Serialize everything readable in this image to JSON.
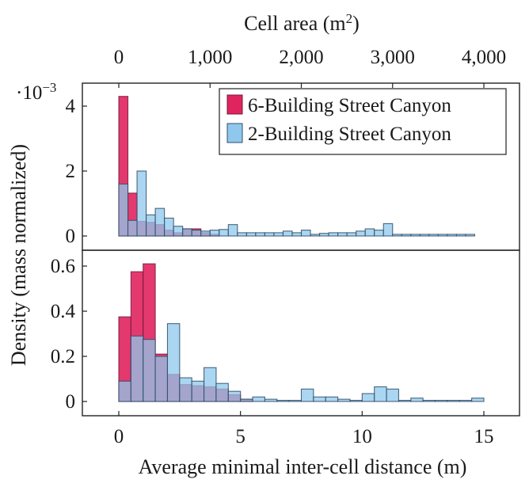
{
  "chart_data": [
    {
      "type": "bar",
      "panel": "top",
      "xlabel_top": "Cell area (m",
      "xlabel_top_sup": "2",
      "xlabel_top_close": ")",
      "top_xlim": [
        0,
        4000
      ],
      "top_xticks": [
        0,
        1000,
        2000,
        3000,
        4000
      ],
      "top_xtick_labels": [
        "0",
        "1,000",
        "2,000",
        "3,000",
        "4,000"
      ],
      "ylim": [
        0,
        0.0046
      ],
      "yticks": [
        0,
        0.002,
        0.004
      ],
      "ytick_labels": [
        "0",
        "2",
        "4"
      ],
      "scale_label": "·10",
      "scale_exp": "−3",
      "bin_width": 100,
      "bin_start": 0,
      "series": [
        {
          "name": "6-Building Street Canyon",
          "color": "#e0245e",
          "values": [
            0.0043,
            0.00132,
            0.00045,
            0.00042,
            0.00035,
            0.00018,
            0.0001,
            0.00022,
            0.00022,
            0.0001,
            5e-05,
            0,
            0,
            0,
            0,
            0,
            0,
            0,
            0,
            0,
            0,
            0,
            0,
            0,
            0,
            0,
            0,
            0,
            0,
            0,
            0,
            0,
            0,
            0,
            0,
            0,
            0,
            0,
            0,
            0
          ]
        },
        {
          "name": "2-Building Street Canyon",
          "color": "#8fc8ec",
          "values": [
            0.0016,
            0.00048,
            0.002,
            0.00065,
            0.00085,
            0.00055,
            0.0003,
            0.00022,
            0.00018,
            0.00015,
            0.00018,
            0.0002,
            0.00035,
            0.0001,
            0.0001,
            0.0001,
            0.0001,
            0.0001,
            0.00015,
            0.0001,
            0.00018,
            5e-05,
            8e-05,
            0.0001,
            0.0001,
            0.0001,
            0.00015,
            0.00022,
            0.00018,
            0.00038,
            5e-05,
            5e-05,
            5e-05,
            5e-05,
            5e-05,
            5e-05,
            5e-05,
            5e-05,
            5e-05,
            0
          ]
        }
      ],
      "legend_position": "top-right"
    },
    {
      "type": "bar",
      "panel": "bottom",
      "xlabel": "Average minimal inter-cell distance (m)",
      "ylabel": "Density (mass normalized)",
      "xlim": [
        -1.3,
        16
      ],
      "xticks": [
        0,
        5,
        10,
        15
      ],
      "xtick_labels": [
        "0",
        "5",
        "10",
        "15"
      ],
      "ylim": [
        -0.04,
        0.68
      ],
      "yticks": [
        0,
        0.2,
        0.4,
        0.6
      ],
      "ytick_labels": [
        "0",
        "0.2",
        "0.4",
        "0.6"
      ],
      "bin_width": 0.5,
      "bin_start": 0,
      "series": [
        {
          "name": "6-Building Street Canyon",
          "color": "#e0245e",
          "values": [
            0.375,
            0.575,
            0.61,
            0.21,
            0.12,
            0.075,
            0.07,
            0.065,
            0.055,
            0.03,
            0.01,
            0,
            0,
            0,
            0,
            0,
            0,
            0,
            0,
            0,
            0,
            0,
            0,
            0,
            0,
            0,
            0,
            0,
            0,
            0
          ]
        },
        {
          "name": "2-Building Street Canyon",
          "color": "#8fc8ec",
          "values": [
            0.09,
            0.29,
            0.275,
            0.2,
            0.345,
            0.105,
            0.09,
            0.15,
            0.08,
            0.045,
            0.01,
            0.02,
            0.01,
            0.005,
            0.005,
            0.055,
            0.02,
            0.02,
            0.01,
            0.005,
            0.035,
            0.065,
            0.055,
            0.005,
            0.015,
            0.005,
            0.005,
            0.005,
            0.005,
            0.015
          ]
        }
      ]
    }
  ]
}
